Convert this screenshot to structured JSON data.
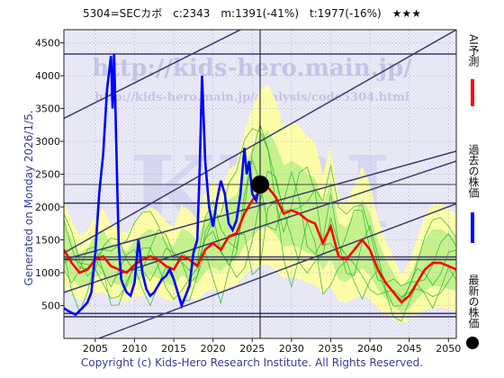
{
  "header": {
    "title": "5304=SECカボ　c:2343　m:1391(-41%)　t:1977(-16%)　★★★"
  },
  "side_note": "Generated on Monday 2026/1/5.",
  "footer": "Copyright (c) Kids-Hero Research Institute. All Rights Reserved.",
  "watermark": {
    "big": "KIRI",
    "url1": "http://kids-hero.main.jp/",
    "url2": "http://kids-hero.main.jp/analysis/code5304.html"
  },
  "legend": [
    {
      "label": "AI予測",
      "color": "#ff0000"
    },
    {
      "label": "過去の株価",
      "color": "#0000ff"
    },
    {
      "label": "最新の株価",
      "color": "#000000"
    }
  ],
  "colors": {
    "price": "#0000ff",
    "forecast": "#ff0000",
    "band_outer": "#ffffa0",
    "band_inner": "#bff08a",
    "sim_lines": "#22b522",
    "channel": "#3c3c6e"
  },
  "chart_data": {
    "type": "line",
    "xlim": [
      2001,
      2051
    ],
    "ylim": [
      0,
      4700
    ],
    "x_ticks": [
      2005,
      2010,
      2015,
      2020,
      2025,
      2030,
      2035,
      2040,
      2045,
      2050
    ],
    "y_ticks": [
      500,
      1000,
      1500,
      2000,
      2500,
      3000,
      3500,
      4000,
      4500
    ],
    "latest": {
      "x": 2026.0,
      "y": 2343
    },
    "horizontal_lines": [
      4330,
      2060,
      1240,
      1200,
      380,
      330
    ],
    "channel_lines": [
      {
        "x1": 2001,
        "y1": 3350,
        "x2": 2051,
        "y2": 6350
      },
      {
        "x1": 2001,
        "y1": 1300,
        "x2": 2051,
        "y2": 4700
      },
      {
        "x1": 2001,
        "y1": 1200,
        "x2": 2051,
        "y2": 2850
      },
      {
        "x1": 2001,
        "y1": 700,
        "x2": 2051,
        "y2": 2700
      },
      {
        "x1": 2001,
        "y1": -200,
        "x2": 2051,
        "y2": 2050
      }
    ],
    "series": [
      {
        "x": [
          2001,
          2001.5,
          2002,
          2002.5,
          2003,
          2003.5,
          2004,
          2004.5,
          2005,
          2005.5,
          2006,
          2006.5,
          2007,
          2007.2,
          2007.4,
          2007.6,
          2007.8,
          2008,
          2008.3,
          2008.6,
          2009,
          2009.5,
          2010,
          2010.5,
          2011,
          2011.5,
          2012,
          2012.5,
          2013,
          2013.5,
          2014,
          2014.5,
          2015,
          2015.5,
          2016,
          2016.5,
          2017,
          2017.5,
          2018,
          2018.3,
          2018.6,
          2019,
          2019.5,
          2020,
          2020.5,
          2021,
          2021.5,
          2022,
          2022.5,
          2023,
          2023.5,
          2024,
          2024.3,
          2024.6,
          2025,
          2025.5,
          2026
        ],
        "y": [
          460,
          420,
          390,
          360,
          420,
          480,
          550,
          700,
          1300,
          2200,
          2800,
          3800,
          4300,
          3500,
          4330,
          3300,
          2300,
          1400,
          900,
          800,
          700,
          650,
          850,
          1500,
          1000,
          750,
          650,
          700,
          800,
          900,
          950,
          1050,
          900,
          700,
          500,
          650,
          800,
          1300,
          1500,
          2600,
          4000,
          2700,
          2000,
          1700,
          2100,
          2400,
          2200,
          1750,
          1650,
          1800,
          2200,
          2900,
          2500,
          2700,
          2200,
          2100,
          2343
        ]
      },
      {
        "x": [
          2001,
          2002,
          2003,
          2004,
          2005,
          2006,
          2007,
          2008,
          2009,
          2010,
          2011,
          2012,
          2013,
          2014,
          2015,
          2016,
          2017,
          2018,
          2019,
          2020,
          2021,
          2022,
          2023,
          2024,
          2025,
          2026,
          2027,
          2028,
          2029,
          2030,
          2031,
          2032,
          2033,
          2034,
          2035,
          2036,
          2037,
          2038,
          2039,
          2040,
          2041,
          2042,
          2043,
          2044,
          2045,
          2046,
          2047,
          2048,
          2049,
          2050,
          2051
        ],
        "y": [
          1350,
          1150,
          1000,
          1050,
          1200,
          1250,
          1100,
          1050,
          1000,
          1120,
          1200,
          1250,
          1200,
          1100,
          1050,
          1250,
          1200,
          1100,
          1350,
          1450,
          1350,
          1550,
          1600,
          1900,
          2100,
          2250,
          2300,
          2150,
          1900,
          1950,
          1900,
          1800,
          1750,
          1450,
          1700,
          1250,
          1200,
          1350,
          1500,
          1350,
          1050,
          850,
          700,
          550,
          650,
          850,
          1050,
          1150,
          1150,
          1100,
          1050
        ]
      }
    ]
  }
}
